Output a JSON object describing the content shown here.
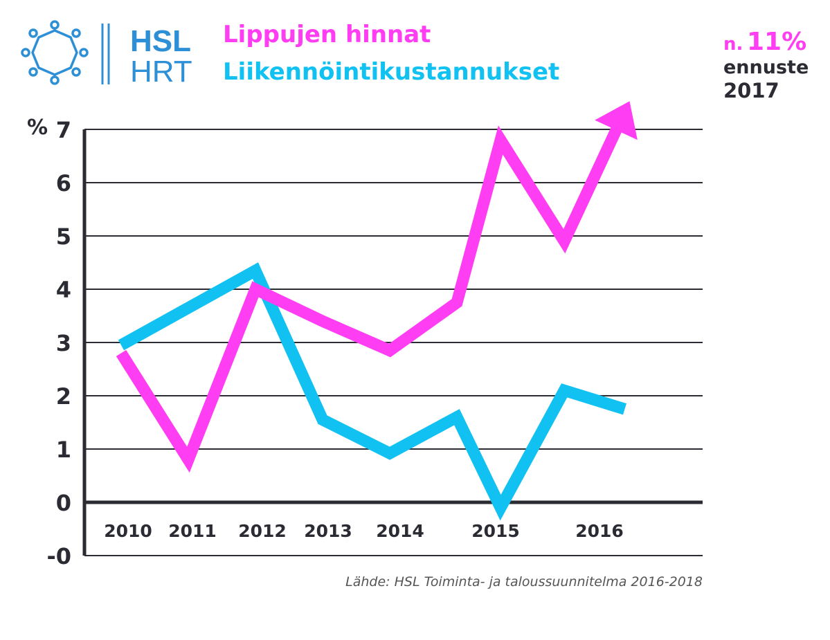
{
  "brand": {
    "name_top": "HSL",
    "name_bottom": "HRT",
    "logo_icon": "hsl-sun-logo-icon"
  },
  "colors": {
    "ticket_prices": "#ff3df2",
    "operating_costs": "#10c1f2",
    "axis": "#2b2b33",
    "brand": "#2d8fd5"
  },
  "forecast": {
    "prefix": "n.",
    "value": "11%",
    "label": "ennuste",
    "year": "2017"
  },
  "source": "Lähde: HSL Toiminta- ja taloussuunnitelma 2016-2018",
  "chart_data": {
    "type": "line",
    "title": "",
    "xlabel": "",
    "ylabel": "%",
    "ylim": [
      -1,
      7
    ],
    "y_ticks": [
      "-0",
      "0",
      "1",
      "2",
      "3",
      "4",
      "5",
      "6",
      "7"
    ],
    "categories": [
      "2010",
      "2011",
      "2012",
      "2013",
      "2014",
      "2015",
      "2016"
    ],
    "series": [
      {
        "name": "Lippujen hinnat",
        "x": [
          2010,
          2011,
          2012,
          2013,
          2014,
          2015,
          2015.65,
          2016.6,
          2017.45
        ],
        "values": [
          2.8,
          0.8,
          4.0,
          3.4,
          2.85,
          3.75,
          6.8,
          4.9,
          7.2
        ]
      },
      {
        "name": "Liikennöintikustannukset",
        "x": [
          2010,
          2011,
          2012,
          2013,
          2014,
          2015,
          2015.65,
          2016.6,
          2017.5
        ],
        "values": [
          2.95,
          3.65,
          4.35,
          1.55,
          0.92,
          1.6,
          -0.1,
          2.1,
          1.75
        ]
      }
    ]
  }
}
